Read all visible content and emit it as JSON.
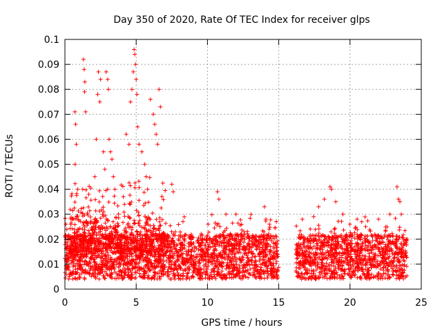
{
  "chart_data": {
    "type": "scatter",
    "title": "Day 350 of 2020, Rate Of TEC Index for receiver glps",
    "xlabel": "GPS time / hours",
    "ylabel": "ROTI / TECUs",
    "xlim": [
      0,
      25
    ],
    "ylim": [
      0,
      0.1
    ],
    "x_ticks": [
      "0",
      "5",
      "10",
      "15",
      "20",
      "25"
    ],
    "y_ticks": [
      "0",
      "0.01",
      "0.02",
      "0.03",
      "0.04",
      "0.05",
      "0.06",
      "0.07",
      "0.08",
      "0.09",
      "0.1"
    ],
    "grid": true,
    "marker": "plus",
    "color": "#ff0000",
    "gap_hours": [
      15.0,
      16.2
    ],
    "band": {
      "low": 0.004,
      "high": 0.022
    },
    "series": [
      {
        "x": [
          0.7,
          0.75,
          0.8,
          0.72,
          0.9,
          1.3,
          1.35,
          1.4,
          1.38,
          1.45,
          1.25,
          2.1,
          2.2,
          2.3,
          2.35,
          2.5,
          2.45,
          2.7,
          2.8,
          2.9,
          3.0,
          3.05,
          3.1,
          3.2,
          3.3,
          3.4,
          3.5,
          4.3,
          4.5,
          4.6,
          4.7,
          4.8,
          4.85,
          4.9,
          4.95,
          5.0,
          5.05,
          5.1,
          5.2,
          5.4,
          5.6,
          5.7,
          5.8,
          6.0,
          6.2,
          6.3,
          6.4,
          6.5,
          6.6,
          6.7,
          7.5,
          7.6,
          10.7,
          10.8,
          11.3,
          12.0,
          14.0,
          14.1,
          17.8,
          18.2,
          18.6,
          18.7,
          19.0,
          19.5,
          20.5,
          22.0,
          22.8,
          23.3,
          23.4,
          23.5,
          23.6
        ],
        "y": [
          0.071,
          0.066,
          0.058,
          0.05,
          0.04,
          0.092,
          0.088,
          0.083,
          0.079,
          0.071,
          0.04,
          0.045,
          0.06,
          0.078,
          0.087,
          0.084,
          0.075,
          0.055,
          0.048,
          0.087,
          0.084,
          0.08,
          0.06,
          0.055,
          0.052,
          0.045,
          0.04,
          0.062,
          0.058,
          0.075,
          0.08,
          0.087,
          0.096,
          0.094,
          0.09,
          0.084,
          0.078,
          0.065,
          0.058,
          0.055,
          0.05,
          0.045,
          0.04,
          0.076,
          0.07,
          0.066,
          0.062,
          0.058,
          0.08,
          0.073,
          0.042,
          0.039,
          0.039,
          0.036,
          0.03,
          0.03,
          0.033,
          0.028,
          0.033,
          0.036,
          0.041,
          0.04,
          0.035,
          0.03,
          0.028,
          0.028,
          0.03,
          0.041,
          0.036,
          0.035,
          0.03
        ]
      }
    ]
  }
}
